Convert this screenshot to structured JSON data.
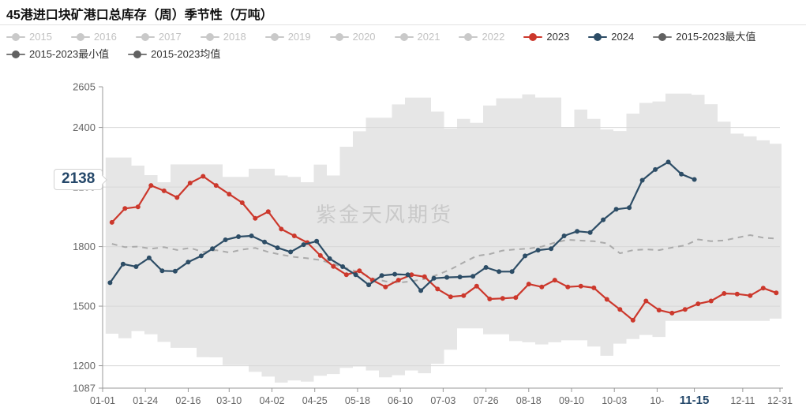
{
  "title": "45港进口块矿港口总库存（周）季节性（万吨）",
  "watermark": "紫金天风期货",
  "callout": {
    "value": "2138"
  },
  "colors": {
    "red": "#cc382c",
    "navy": "#2d4d66",
    "band": "#e6e6e6",
    "mean_dash": "#ababab",
    "axis_line": "#999999",
    "axis_text": "#666666",
    "grid_line": "#d8d8d8",
    "muted_legend_line": "#c9c9c9",
    "muted_legend_text": "#c2c2c2",
    "dark_legend_line": "#7a7a7a",
    "dark_legend_dot": "#616161",
    "legend_text": "#333333",
    "highlight": "#25486a",
    "watermark_text": "#c5c5c5"
  },
  "legend": {
    "rows": [
      [
        {
          "label": "2015",
          "type": "muted"
        },
        {
          "label": "2016",
          "type": "muted"
        },
        {
          "label": "2017",
          "type": "muted"
        },
        {
          "label": "2018",
          "type": "muted"
        },
        {
          "label": "2019",
          "type": "muted"
        },
        {
          "label": "2020",
          "type": "muted"
        },
        {
          "label": "2021",
          "type": "muted"
        },
        {
          "label": "2022",
          "type": "muted"
        },
        {
          "label": "2023",
          "type": "red"
        },
        {
          "label": "2024",
          "type": "navy"
        },
        {
          "label": "2015-2023最大值",
          "type": "dark"
        }
      ],
      [
        {
          "label": "2015-2023最小值",
          "type": "dark"
        },
        {
          "label": "2015-2023均值",
          "type": "dark"
        }
      ]
    ]
  },
  "y_axis": {
    "labels": [
      2605,
      2400,
      2100,
      1800,
      1500,
      1200,
      1087
    ],
    "grid_values": [
      1200,
      1500,
      1800,
      2100,
      2400
    ]
  },
  "x_axis": {
    "ticks": [
      {
        "label": "01-01",
        "date": "01-01"
      },
      {
        "label": "01-24",
        "date": "01-24"
      },
      {
        "label": "02-16",
        "date": "02-16"
      },
      {
        "label": "03-10",
        "date": "03-10"
      },
      {
        "label": "04-02",
        "date": "04-02"
      },
      {
        "label": "04-25",
        "date": "04-25"
      },
      {
        "label": "05-18",
        "date": "05-18"
      },
      {
        "label": "06-10",
        "date": "06-10"
      },
      {
        "label": "07-03",
        "date": "07-03"
      },
      {
        "label": "07-26",
        "date": "07-26"
      },
      {
        "label": "08-18",
        "date": "08-18"
      },
      {
        "label": "09-10",
        "date": "09-10"
      },
      {
        "label": "10-03",
        "date": "10-03"
      },
      {
        "label": "10-",
        "date": "10-26"
      },
      {
        "label": "11-15",
        "date": "11-15",
        "highlight": true
      },
      {
        "label": "12-11",
        "date": "12-11"
      },
      {
        "label": "12-31",
        "date": "12-31"
      }
    ]
  },
  "chart_data": {
    "type": "line",
    "title": "45港进口块矿港口总库存（周）季节性（万吨）",
    "unit": "万吨",
    "ylim": [
      1087,
      2605
    ],
    "grid": true,
    "legend_position": "top",
    "hidden_series": [
      "2015",
      "2016",
      "2017",
      "2018",
      "2019",
      "2020",
      "2021",
      "2022"
    ],
    "weeks_2023": [
      "01-06",
      "01-13",
      "01-20",
      "01-27",
      "02-03",
      "02-10",
      "02-17",
      "02-24",
      "03-03",
      "03-10",
      "03-17",
      "03-24",
      "03-31",
      "04-07",
      "04-14",
      "04-21",
      "04-28",
      "05-05",
      "05-12",
      "05-19",
      "05-26",
      "06-02",
      "06-09",
      "06-16",
      "06-23",
      "06-30",
      "07-07",
      "07-14",
      "07-21",
      "07-28",
      "08-04",
      "08-11",
      "08-18",
      "08-25",
      "09-01",
      "09-08",
      "09-15",
      "09-22",
      "09-29",
      "10-06",
      "10-13",
      "10-20",
      "10-27",
      "11-03",
      "11-10",
      "11-17",
      "11-24",
      "12-01",
      "12-08",
      "12-15",
      "12-22",
      "12-29"
    ],
    "weeks_2024": [
      "01-05",
      "01-12",
      "01-19",
      "01-26",
      "02-02",
      "02-09",
      "02-16",
      "02-23",
      "03-01",
      "03-08",
      "03-15",
      "03-22",
      "03-29",
      "04-05",
      "04-12",
      "04-19",
      "04-26",
      "05-03",
      "05-10",
      "05-17",
      "05-24",
      "05-31",
      "06-07",
      "06-14",
      "06-21",
      "06-28",
      "07-05",
      "07-12",
      "07-19",
      "07-26",
      "08-02",
      "08-09",
      "08-16",
      "08-23",
      "08-30",
      "09-06",
      "09-13",
      "09-20",
      "09-27",
      "10-04",
      "10-11",
      "10-18",
      "10-25",
      "11-01",
      "11-08",
      "11-15"
    ],
    "series": [
      {
        "name": "2015-2023最大值",
        "style": "band-top",
        "weeks": "weeks_2023",
        "values": [
          2249,
          2249,
          2208,
          2160,
          2124,
          2214,
          2214,
          2214,
          2214,
          2151,
          2151,
          2192,
          2192,
          2158,
          2151,
          2124,
          2213,
          2158,
          2303,
          2381,
          2449,
          2449,
          2516,
          2550,
          2550,
          2480,
          2395,
          2443,
          2423,
          2511,
          2547,
          2547,
          2567,
          2551,
          2551,
          2402,
          2490,
          2443,
          2390,
          2382,
          2470,
          2524,
          2531,
          2571,
          2571,
          2565,
          2517,
          2429,
          2369,
          2355,
          2335,
          2318
        ]
      },
      {
        "name": "2015-2023最小值",
        "style": "band-bottom",
        "weeks": "weeks_2023",
        "values": [
          1361,
          1338,
          1374,
          1358,
          1320,
          1290,
          1290,
          1243,
          1242,
          1203,
          1203,
          1169,
          1145,
          1115,
          1126,
          1120,
          1149,
          1158,
          1189,
          1196,
          1176,
          1142,
          1152,
          1176,
          1162,
          1209,
          1280,
          1388,
          1388,
          1358,
          1358,
          1324,
          1318,
          1307,
          1318,
          1328,
          1328,
          1297,
          1250,
          1311,
          1334,
          1355,
          1345,
          1426,
          1426,
          1426,
          1426,
          1426,
          1426,
          1426,
          1426,
          1437
        ]
      },
      {
        "name": "2015-2023均值",
        "style": "dashed",
        "weeks": "weeks_2023",
        "values": [
          1814,
          1797,
          1800,
          1789,
          1797,
          1783,
          1793,
          1773,
          1782,
          1770,
          1785,
          1793,
          1773,
          1759,
          1748,
          1741,
          1732,
          1712,
          1691,
          1670,
          1640,
          1625,
          1618,
          1625,
          1637,
          1658,
          1685,
          1720,
          1753,
          1762,
          1780,
          1786,
          1790,
          1800,
          1820,
          1834,
          1830,
          1827,
          1816,
          1766,
          1782,
          1786,
          1782,
          1795,
          1806,
          1836,
          1827,
          1831,
          1845,
          1858,
          1845,
          1840
        ]
      },
      {
        "name": "2023",
        "style": "line-markers",
        "color_key": "red",
        "weeks": "weeks_2023",
        "values": [
          1922,
          1992,
          2000,
          2108,
          2081,
          2047,
          2120,
          2154,
          2108,
          2064,
          2021,
          1942,
          1976,
          1888,
          1854,
          1820,
          1755,
          1700,
          1658,
          1678,
          1631,
          1597,
          1631,
          1658,
          1648,
          1586,
          1547,
          1553,
          1601,
          1536,
          1539,
          1543,
          1611,
          1597,
          1631,
          1597,
          1601,
          1592,
          1534,
          1483,
          1429,
          1526,
          1480,
          1465,
          1483,
          1512,
          1526,
          1564,
          1561,
          1553,
          1591,
          1567
        ]
      },
      {
        "name": "2024",
        "style": "line-markers",
        "color_key": "navy",
        "weeks": "weeks_2024",
        "values": [
          1618,
          1712,
          1699,
          1743,
          1678,
          1676,
          1722,
          1753,
          1789,
          1834,
          1850,
          1854,
          1823,
          1794,
          1773,
          1810,
          1827,
          1739,
          1699,
          1658,
          1607,
          1654,
          1661,
          1658,
          1578,
          1640,
          1645,
          1647,
          1650,
          1695,
          1674,
          1674,
          1753,
          1782,
          1789,
          1854,
          1877,
          1871,
          1935,
          1988,
          1996,
          2134,
          2188,
          2226,
          2165,
          2138
        ]
      }
    ],
    "last_point": {
      "series": "2024",
      "date": "11-15",
      "value": 2138
    }
  }
}
